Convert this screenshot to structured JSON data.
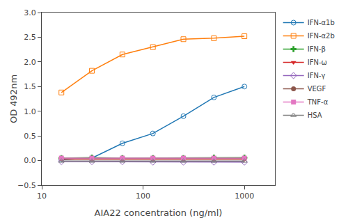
{
  "chart_data": {
    "type": "line",
    "x": [
      15.625,
      31.25,
      62.5,
      125,
      250,
      500,
      1000
    ],
    "series": [
      {
        "name": "IFN-α1b",
        "marker": "circle-open",
        "values": [
          0.02,
          0.05,
          0.35,
          0.55,
          0.9,
          1.28,
          1.5
        ]
      },
      {
        "name": "IFN-α2b",
        "marker": "square-open",
        "values": [
          1.38,
          1.82,
          2.15,
          2.3,
          2.46,
          2.48,
          2.52
        ]
      },
      {
        "name": "IFN-β",
        "marker": "cross",
        "values": [
          0.05,
          0.06,
          0.05,
          0.05,
          0.05,
          0.06,
          0.06
        ]
      },
      {
        "name": "IFN-ω",
        "marker": "triangle-down",
        "values": [
          0.03,
          0.03,
          0.03,
          0.03,
          0.03,
          0.03,
          0.03
        ]
      },
      {
        "name": "IFN-γ",
        "marker": "diamond-open",
        "values": [
          -0.02,
          -0.02,
          -0.02,
          -0.03,
          -0.03,
          -0.03,
          -0.03
        ]
      },
      {
        "name": "VEGF",
        "marker": "circle",
        "values": [
          0.04,
          0.04,
          0.04,
          0.04,
          0.04,
          0.04,
          0.04
        ]
      },
      {
        "name": "TNF-α",
        "marker": "square",
        "values": [
          0.05,
          0.05,
          0.05,
          0.05,
          0.05,
          0.05,
          0.05
        ]
      },
      {
        "name": "HSA",
        "marker": "triangle-up-open",
        "values": [
          -0.01,
          -0.01,
          -0.01,
          -0.01,
          -0.01,
          -0.01,
          -0.01
        ]
      }
    ],
    "xlabel": "AIA22 concentration (ng/ml)",
    "ylabel": "OD 492nm",
    "log": "x",
    "xlim": [
      10,
      2000
    ],
    "xticks": [
      10,
      100,
      1000
    ],
    "ylim": [
      -0.5,
      3.0
    ],
    "yticks": [
      {
        "value": -0.5,
        "label": "−0.5"
      },
      {
        "value": 0.0,
        "label": "0.0"
      },
      0.5,
      {
        "value": 1.0,
        "label": "1.0"
      },
      1.5,
      {
        "value": 2.0,
        "label": "2.0"
      },
      2.5,
      {
        "value": 3.0,
        "label": "3.0"
      }
    ],
    "grid": false,
    "legend": "right"
  }
}
